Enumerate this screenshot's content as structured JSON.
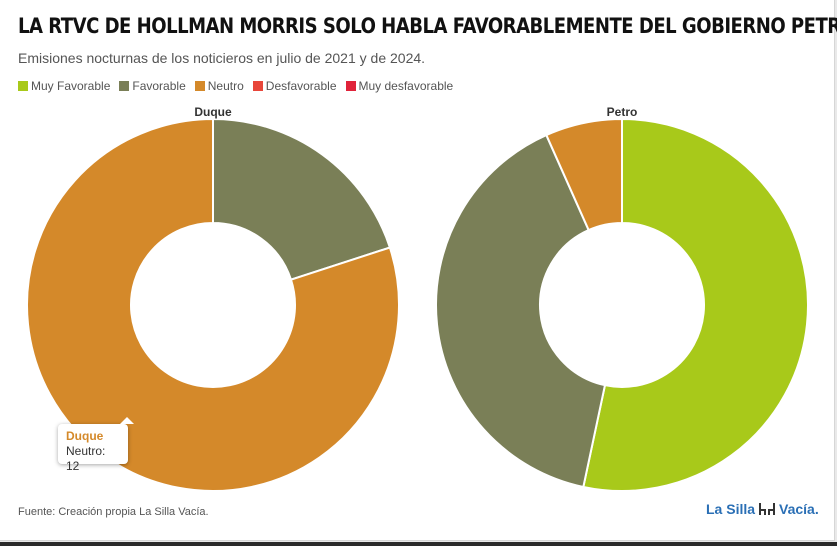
{
  "header": {
    "title": "LA RTVC DE HOLLMAN MORRIS SOLO HABLA FAVORABLEMENTE DEL GOBIERNO PETRO",
    "subtitle": "Emisiones nocturnas de los noticieros en julio de 2021 y de 2024."
  },
  "legend": [
    {
      "label": "Muy Favorable",
      "color": "#a8c91a"
    },
    {
      "label": "Favorable",
      "color": "#7a7f57"
    },
    {
      "label": "Neutro",
      "color": "#d4892a"
    },
    {
      "label": "Desfavorable",
      "color": "#e8463a"
    },
    {
      "label": "Muy desfavorable",
      "color": "#e0233a"
    }
  ],
  "chart_data": [
    {
      "type": "pie",
      "donut": true,
      "title": "Duque",
      "slices": [
        {
          "label": "Favorable",
          "value": 3,
          "color": "#7a7f57"
        },
        {
          "label": "Neutro",
          "value": 12,
          "color": "#d4892a"
        }
      ]
    },
    {
      "type": "pie",
      "donut": true,
      "title": "Petro",
      "slices": [
        {
          "label": "Muy Favorable",
          "value": 8,
          "color": "#a8c91a"
        },
        {
          "label": "Favorable",
          "value": 6,
          "color": "#7a7f57"
        },
        {
          "label": "Neutro",
          "value": 1,
          "color": "#d4892a"
        }
      ]
    }
  ],
  "tooltip": {
    "series": "Duque",
    "label": "Neutro",
    "value": "12"
  },
  "footer": {
    "source": "Fuente: Creación propia La Silla Vacía.",
    "logo_text": "La Silla",
    "logo_text_2": "Vacía."
  }
}
